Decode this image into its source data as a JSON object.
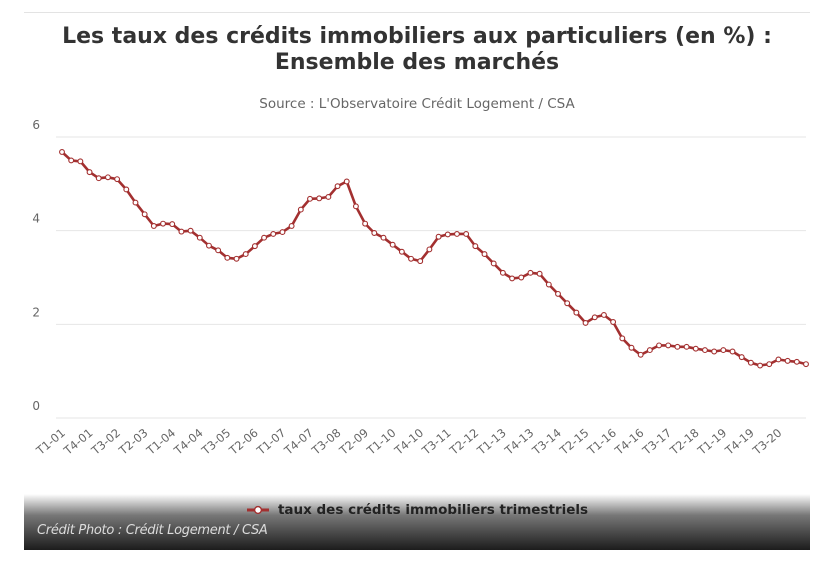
{
  "chart_data": {
    "type": "line",
    "title_lines": [
      "Les taux des crédits immobiliers aux particuliers (en %) :",
      "Ensemble des marchés"
    ],
    "subtitle": "Source : L'Observatoire Crédit Logement / CSA",
    "xlabel": "",
    "ylabel": "",
    "ylim": [
      0,
      6
    ],
    "yticks": [
      0,
      2,
      4,
      6
    ],
    "grid": true,
    "legend_position": "bottom-center",
    "xtick_labels": [
      "T1-01",
      "T4-01",
      "T3-02",
      "T2-03",
      "T1-04",
      "T4-04",
      "T3-05",
      "T2-06",
      "T1-07",
      "T4-07",
      "T3-08",
      "T2-09",
      "T1-10",
      "T4-10",
      "T3-11",
      "T2-12",
      "T1-13",
      "T4-13",
      "T3-14",
      "T2-15",
      "T1-16",
      "T4-16",
      "T3-17",
      "T2-18",
      "T1-19",
      "T4-19",
      "T3-20"
    ],
    "xtick_every": 3,
    "series": [
      {
        "name": "taux des crédits immobiliers trimestriels",
        "color": "#a33030",
        "values": [
          5.68,
          5.5,
          5.48,
          5.25,
          5.12,
          5.14,
          5.1,
          4.88,
          4.6,
          4.35,
          4.1,
          4.15,
          4.14,
          3.98,
          4.0,
          3.85,
          3.68,
          3.58,
          3.42,
          3.4,
          3.5,
          3.67,
          3.85,
          3.93,
          3.97,
          4.1,
          4.45,
          4.68,
          4.69,
          4.72,
          4.95,
          5.05,
          4.52,
          4.15,
          3.95,
          3.85,
          3.7,
          3.55,
          3.4,
          3.35,
          3.6,
          3.87,
          3.92,
          3.93,
          3.93,
          3.67,
          3.5,
          3.3,
          3.1,
          2.98,
          3.0,
          3.1,
          3.08,
          2.85,
          2.65,
          2.45,
          2.25,
          2.03,
          2.15,
          2.2,
          2.05,
          1.7,
          1.5,
          1.35,
          1.45,
          1.55,
          1.55,
          1.52,
          1.52,
          1.48,
          1.45,
          1.42,
          1.45,
          1.42,
          1.3,
          1.18,
          1.12,
          1.15,
          1.25,
          1.22,
          1.2,
          1.15
        ]
      }
    ]
  },
  "photo_credit": "Crédit Photo : Crédit Logement / CSA"
}
